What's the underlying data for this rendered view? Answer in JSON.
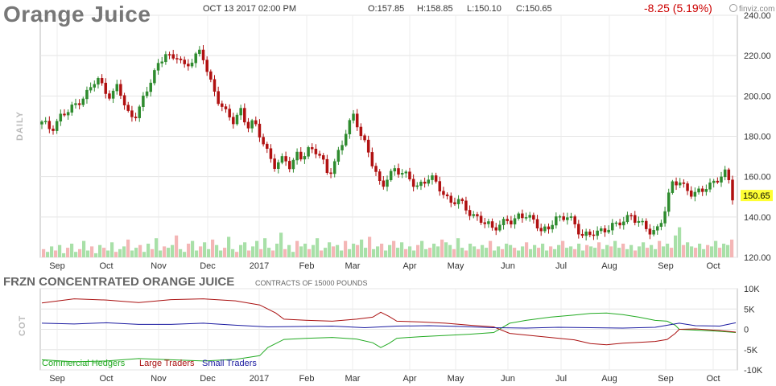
{
  "header": {
    "title": "Orange Juice",
    "datetime": "OCT 13 2017 02:00 PM",
    "open": "O:157.85",
    "high": "H:158.85",
    "low": "L:150.10",
    "close": "C:150.65",
    "change": "-8.25 (5.19%)",
    "brand": "finviz.com"
  },
  "daily_label": "DAILY",
  "cot_label": "COT",
  "cot_title": "FRZN CONCENTRATED ORANGE JUICE",
  "cot_subtitle": "CONTRACTS OF 15000 POUNDS",
  "colors": {
    "up": "#2e8b2e",
    "down": "#b01010",
    "vol_up": "#a8e0a8",
    "vol_down": "#f4b6b6",
    "commercial": "#22aa22",
    "large": "#aa1111",
    "small": "#1a1aa0",
    "price_badge": "#ffff33"
  },
  "chart_data": [
    {
      "type": "candlestick",
      "title": "Orange Juice",
      "ylim": [
        120,
        240
      ],
      "y_ticks": [
        "240.00",
        "220.00",
        "200.00",
        "180.00",
        "160.00",
        "140.00",
        "120.00"
      ],
      "x_tick_labels": [
        "Sep",
        "Oct",
        "Nov",
        "Dec",
        "2017",
        "Feb",
        "Mar",
        "Apr",
        "May",
        "Jun",
        "Jul",
        "Aug",
        "Sep",
        "Oct"
      ],
      "last_price": "150.65",
      "grid": true,
      "close_path": [
        [
          0,
          186
        ],
        [
          8,
          184
        ],
        [
          16,
          190
        ],
        [
          24,
          192
        ],
        [
          32,
          198
        ],
        [
          40,
          202
        ],
        [
          48,
          208
        ],
        [
          54,
          204
        ],
        [
          60,
          200
        ],
        [
          66,
          205
        ],
        [
          70,
          197
        ],
        [
          76,
          190
        ],
        [
          82,
          192
        ],
        [
          90,
          200
        ],
        [
          96,
          210
        ],
        [
          102,
          218
        ],
        [
          108,
          222
        ],
        [
          112,
          216
        ],
        [
          118,
          220
        ],
        [
          124,
          215
        ],
        [
          130,
          218
        ],
        [
          138,
          221
        ],
        [
          142,
          215
        ],
        [
          148,
          205
        ],
        [
          154,
          196
        ],
        [
          160,
          190
        ],
        [
          166,
          188
        ],
        [
          172,
          194
        ],
        [
          178,
          184
        ],
        [
          184,
          186
        ],
        [
          190,
          180
        ],
        [
          196,
          172
        ],
        [
          202,
          164
        ],
        [
          206,
          166
        ],
        [
          210,
          170
        ],
        [
          216,
          165
        ],
        [
          220,
          172
        ],
        [
          226,
          168
        ],
        [
          230,
          172
        ],
        [
          236,
          175
        ],
        [
          242,
          170
        ],
        [
          248,
          160
        ],
        [
          252,
          163
        ],
        [
          258,
          175
        ],
        [
          264,
          184
        ],
        [
          270,
          190
        ],
        [
          276,
          180
        ],
        [
          282,
          175
        ],
        [
          288,
          164
        ],
        [
          294,
          153
        ],
        [
          300,
          160
        ],
        [
          306,
          165
        ],
        [
          312,
          162
        ],
        [
          318,
          158
        ],
        [
          324,
          155
        ],
        [
          330,
          158
        ],
        [
          336,
          160
        ],
        [
          342,
          155
        ],
        [
          348,
          152
        ],
        [
          354,
          148
        ],
        [
          360,
          148
        ],
        [
          366,
          144
        ],
        [
          372,
          142
        ],
        [
          378,
          140
        ],
        [
          384,
          136
        ],
        [
          390,
          134
        ],
        [
          396,
          137
        ],
        [
          402,
          139
        ],
        [
          408,
          136
        ],
        [
          414,
          141
        ],
        [
          420,
          142
        ],
        [
          426,
          138
        ],
        [
          432,
          132
        ],
        [
          438,
          134
        ],
        [
          444,
          141
        ],
        [
          450,
          138
        ],
        [
          456,
          140
        ],
        [
          462,
          136
        ],
        [
          468,
          132
        ],
        [
          474,
          130
        ],
        [
          480,
          132
        ],
        [
          486,
          134
        ],
        [
          492,
          136
        ],
        [
          498,
          135
        ],
        [
          504,
          138
        ],
        [
          510,
          142
        ],
        [
          516,
          138
        ],
        [
          522,
          134
        ],
        [
          528,
          132
        ],
        [
          534,
          136
        ],
        [
          540,
          144
        ],
        [
          546,
          156
        ],
        [
          552,
          158
        ],
        [
          558,
          155
        ],
        [
          564,
          150
        ],
        [
          570,
          152
        ],
        [
          576,
          156
        ],
        [
          582,
          158
        ],
        [
          588,
          159
        ],
        [
          592,
          161
        ],
        [
          596,
          157
        ],
        [
          598,
          150.65
        ]
      ],
      "volume": [
        6,
        4,
        8,
        5,
        9,
        3,
        7,
        10,
        4,
        6,
        12,
        5,
        8,
        3,
        9,
        7,
        5,
        11,
        4,
        6,
        8,
        13,
        5,
        7,
        9,
        4,
        10,
        6,
        14,
        5,
        8,
        7,
        9,
        16,
        6,
        4,
        10,
        12,
        5,
        8,
        11,
        6,
        13,
        9,
        5,
        7,
        15,
        6,
        4,
        9,
        11,
        5,
        8,
        12,
        6,
        14,
        7,
        5,
        10,
        18,
        6,
        9,
        4,
        12,
        8,
        10,
        6,
        9,
        14,
        5,
        7,
        11,
        8,
        9,
        5,
        12,
        6,
        10,
        9,
        13,
        7,
        15,
        6,
        8,
        10,
        5,
        9,
        12,
        7,
        11,
        6,
        8,
        5,
        9,
        12,
        6,
        7,
        10,
        8,
        13,
        11,
        9,
        6,
        14,
        7,
        5,
        10,
        8,
        6,
        9,
        7,
        12,
        5,
        8,
        6,
        10,
        9,
        7,
        5,
        8,
        11,
        6,
        9,
        7,
        10,
        5,
        8,
        6,
        9,
        12,
        7,
        8,
        6,
        10,
        5,
        9,
        8,
        7,
        11,
        6,
        9,
        8,
        12,
        7,
        10,
        6,
        9,
        5,
        8,
        11,
        7,
        9,
        6,
        12,
        8,
        10,
        7,
        16,
        22,
        9,
        11,
        8,
        7,
        10,
        6,
        9,
        8,
        12,
        7,
        10,
        9,
        13
      ]
    },
    {
      "type": "line",
      "title": "FRZN CONCENTRATED ORANGE JUICE",
      "ylim": [
        -10000,
        10000
      ],
      "y_ticks": [
        "10K",
        "5K",
        "0",
        "-5K",
        "-10K"
      ],
      "x_tick_labels": [
        "Sep",
        "Oct",
        "Nov",
        "Dec",
        "2017",
        "Feb",
        "Mar",
        "Apr",
        "May",
        "Jun",
        "Jul",
        "Aug",
        "Sep",
        "Oct"
      ],
      "series": [
        {
          "name": "Commercial Hedgers",
          "points": [
            [
              0,
              -7500
            ],
            [
              40,
              -8000
            ],
            [
              80,
              -7800
            ],
            [
              120,
              -7200
            ],
            [
              160,
              -7500
            ],
            [
              200,
              -7800
            ],
            [
              240,
              -7400
            ],
            [
              270,
              -6500
            ],
            [
              280,
              -4500
            ],
            [
              300,
              -2500
            ],
            [
              330,
              -2200
            ],
            [
              360,
              -2000
            ],
            [
              390,
              -2400
            ],
            [
              410,
              -3300
            ],
            [
              420,
              -4500
            ],
            [
              430,
              -3500
            ],
            [
              440,
              -2200
            ],
            [
              470,
              -1800
            ],
            [
              500,
              -1500
            ],
            [
              530,
              -1200
            ],
            [
              560,
              -800
            ],
            [
              580,
              1500
            ],
            [
              600,
              2200
            ],
            [
              630,
              3000
            ],
            [
              660,
              3500
            ],
            [
              680,
              3900
            ],
            [
              700,
              4000
            ],
            [
              720,
              3600
            ],
            [
              740,
              3000
            ],
            [
              760,
              2200
            ],
            [
              775,
              2000
            ],
            [
              785,
              1000
            ],
            [
              790,
              0
            ],
            [
              810,
              -200
            ],
            [
              840,
              -500
            ],
            [
              860,
              -800
            ]
          ]
        },
        {
          "name": "Large Traders",
          "points": [
            [
              0,
              6500
            ],
            [
              40,
              7500
            ],
            [
              80,
              7200
            ],
            [
              120,
              6600
            ],
            [
              160,
              7300
            ],
            [
              200,
              7500
            ],
            [
              240,
              7000
            ],
            [
              270,
              6000
            ],
            [
              290,
              4000
            ],
            [
              300,
              2500
            ],
            [
              330,
              2200
            ],
            [
              360,
              2000
            ],
            [
              390,
              2500
            ],
            [
              410,
              3000
            ],
            [
              420,
              4200
            ],
            [
              430,
              3200
            ],
            [
              440,
              2000
            ],
            [
              470,
              1800
            ],
            [
              500,
              1500
            ],
            [
              530,
              1000
            ],
            [
              560,
              600
            ],
            [
              580,
              -1000
            ],
            [
              600,
              -1400
            ],
            [
              630,
              -2000
            ],
            [
              660,
              -2600
            ],
            [
              680,
              -3500
            ],
            [
              700,
              -3800
            ],
            [
              720,
              -3400
            ],
            [
              740,
              -3200
            ],
            [
              760,
              -3000
            ],
            [
              775,
              -2500
            ],
            [
              785,
              -1000
            ],
            [
              790,
              0
            ],
            [
              810,
              100
            ],
            [
              840,
              -300
            ],
            [
              860,
              -700
            ]
          ]
        },
        {
          "name": "Small Traders",
          "points": [
            [
              0,
              1500
            ],
            [
              40,
              1300
            ],
            [
              80,
              1600
            ],
            [
              120,
              1200
            ],
            [
              160,
              1200
            ],
            [
              200,
              1500
            ],
            [
              240,
              1000
            ],
            [
              280,
              600
            ],
            [
              320,
              700
            ],
            [
              360,
              800
            ],
            [
              400,
              400
            ],
            [
              440,
              800
            ],
            [
              480,
              900
            ],
            [
              520,
              700
            ],
            [
              560,
              400
            ],
            [
              600,
              300
            ],
            [
              640,
              500
            ],
            [
              680,
              400
            ],
            [
              720,
              300
            ],
            [
              760,
              500
            ],
            [
              790,
              1500
            ],
            [
              810,
              900
            ],
            [
              840,
              800
            ],
            [
              860,
              1600
            ]
          ]
        }
      ]
    }
  ]
}
